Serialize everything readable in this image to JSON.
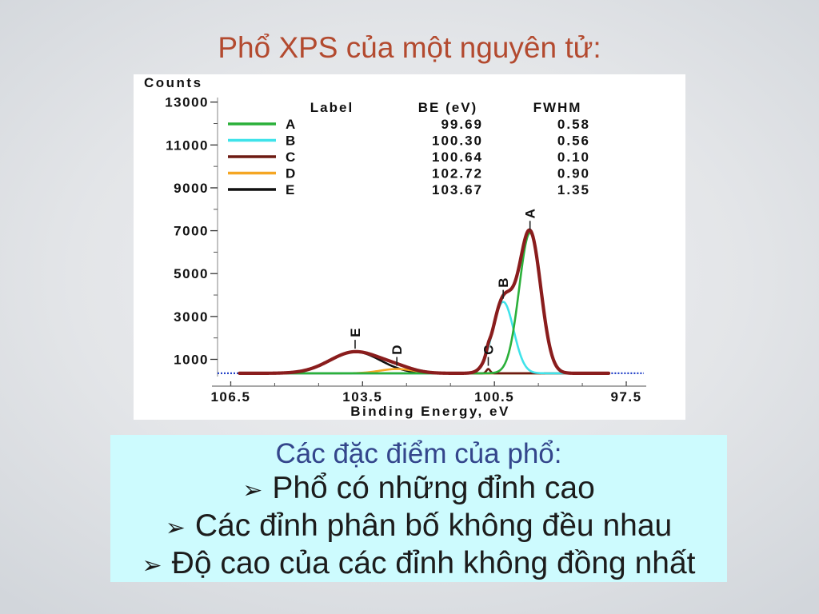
{
  "slide": {
    "title": "Phổ XPS của một nguyên tử:",
    "title_color": "#b34a2f"
  },
  "chart_data": {
    "type": "line",
    "xlabel": "Binding Energy, eV",
    "ylabel": "Counts",
    "xlim": [
      106.8,
      97.1
    ],
    "ylim": [
      -250,
      13250
    ],
    "xticks": [
      "106.5",
      "103.5",
      "100.5",
      "97.5"
    ],
    "yticks": [
      "1000",
      "3000",
      "5000",
      "7000",
      "9000",
      "11000",
      "13000"
    ],
    "grid": false,
    "legend": {
      "placement": "top",
      "header_label": "Label",
      "header_be": "BE (eV)",
      "header_fwhm": "FWHM"
    },
    "baseline_counts": 350,
    "series": [
      {
        "name": "A",
        "be": "99.69",
        "fwhm": "0.58",
        "peak_counts": 6550,
        "color": "#2bb03a"
      },
      {
        "name": "B",
        "be": "100.30",
        "fwhm": "0.56",
        "peak_counts": 3330,
        "color": "#3fe3ea"
      },
      {
        "name": "C",
        "be": "100.64",
        "fwhm": "0.10",
        "peak_counts": 200,
        "color": "#6d1a12"
      },
      {
        "name": "D",
        "be": "102.72",
        "fwhm": "0.90",
        "peak_counts": 200,
        "color": "#f5a623"
      },
      {
        "name": "E",
        "be": "103.67",
        "fwhm": "1.35",
        "peak_counts": 1000,
        "color": "#111111"
      }
    ],
    "envelope_color": "#8a1d1d",
    "raw_data_color": "#2442c8"
  },
  "panel": {
    "heading": "Các đặc điểm của phổ:",
    "heading_color": "#34468c",
    "bullet_icon": "arrow-bullet-icon",
    "items": [
      "Phổ có những đỉnh cao",
      "Các đỉnh phân bố không đều nhau",
      "Độ cao của các đỉnh không đồng nhất"
    ],
    "background": "#cdfbfe"
  }
}
